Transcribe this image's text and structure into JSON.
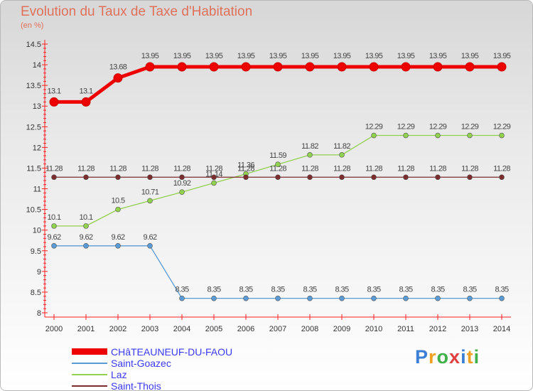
{
  "chart_data": {
    "type": "line",
    "title": "Evolution du Taux de Taxe d'Habitation",
    "subtitle": "(en %)",
    "xlabel": "",
    "ylabel": "",
    "ylim": [
      8,
      14.5
    ],
    "yticks": [
      "8",
      "8.5",
      "9",
      "9.5",
      "10",
      "10.5",
      "11",
      "11.5",
      "12",
      "12.5",
      "13",
      "13.5",
      "14",
      "14.5"
    ],
    "categories": [
      "2000",
      "2001",
      "2002",
      "2003",
      "2004",
      "2005",
      "2006",
      "2007",
      "2008",
      "2009",
      "2010",
      "2011",
      "2012",
      "2013",
      "2014"
    ],
    "series": [
      {
        "name": "CHâTEAUNEUF-DU-FAOU",
        "color": "#ee0000",
        "values": [
          13.1,
          13.1,
          13.68,
          13.95,
          13.95,
          13.95,
          13.95,
          13.95,
          13.95,
          13.95,
          13.95,
          13.95,
          13.95,
          13.95,
          13.95
        ],
        "labels": [
          "13.1",
          "13.1",
          "13.68",
          "13.95",
          "13.95",
          "13.95",
          "13.95",
          "13.95",
          "13.95",
          "13.95",
          "13.95",
          "13.95",
          "13.95",
          "13.95",
          "13.95"
        ]
      },
      {
        "name": "Saint-Goazec",
        "color": "#5b9bd5",
        "values": [
          9.62,
          9.62,
          9.62,
          9.62,
          8.35,
          8.35,
          8.35,
          8.35,
          8.35,
          8.35,
          8.35,
          8.35,
          8.35,
          8.35,
          8.35
        ],
        "labels": [
          "9.62",
          "9.62",
          "9.62",
          "9.62",
          "8.35",
          "8.35",
          "8.35",
          "8.35",
          "8.35",
          "8.35",
          "8.35",
          "8.35",
          "8.35",
          "8.35",
          "8.35"
        ]
      },
      {
        "name": "Laz",
        "color": "#92d050",
        "values": [
          10.1,
          10.1,
          10.5,
          10.71,
          10.92,
          11.14,
          11.36,
          11.59,
          11.82,
          11.82,
          12.29,
          12.29,
          12.29,
          12.29,
          12.29
        ],
        "labels": [
          "10.1",
          "10.1",
          "10.5",
          "10.71",
          "10.92",
          "11.14",
          "11.36",
          "11.59",
          "11.82",
          "11.82",
          "12.29",
          "12.29",
          "12.29",
          "12.29",
          "12.29"
        ]
      },
      {
        "name": "Saint-Thois",
        "color": "#7b2c2c",
        "values": [
          11.28,
          11.28,
          11.28,
          11.28,
          11.28,
          11.28,
          11.28,
          11.28,
          11.28,
          11.28,
          11.28,
          11.28,
          11.28,
          11.28,
          11.28
        ],
        "labels": [
          "11.28",
          "11.28",
          "11.28",
          "11.28",
          "11.28",
          "11.28",
          "11.28",
          "11.28",
          "11.28",
          "11.28",
          "11.28",
          "11.28",
          "11.28",
          "11.28",
          "11.28"
        ]
      }
    ]
  },
  "logo": {
    "text": "Proxiti"
  }
}
